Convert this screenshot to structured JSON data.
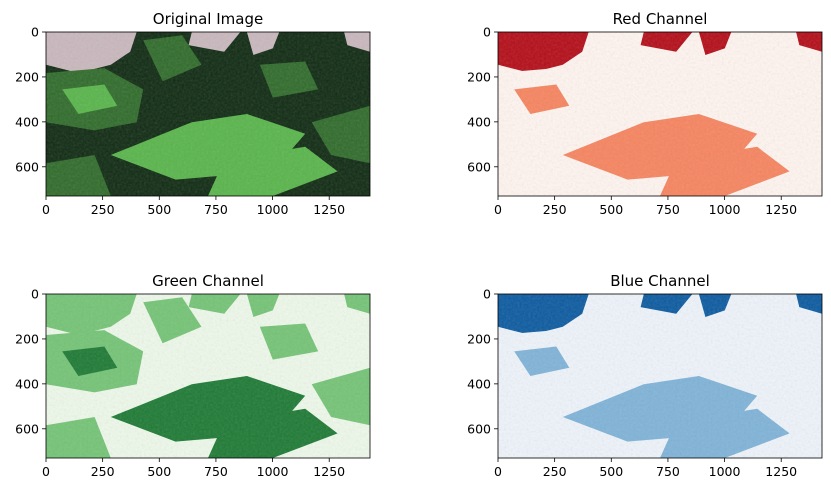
{
  "chart_data": [
    {
      "type": "heatmap",
      "title": "Original Image",
      "colormap": "rgb",
      "xlim": [
        0,
        1430
      ],
      "ylim": [
        730,
        0
      ],
      "xticks": [
        0,
        250,
        500,
        750,
        1000,
        1250
      ],
      "yticks": [
        0,
        200,
        400,
        600
      ],
      "colors": {
        "dark": "#0f2a12",
        "mid": "#2f6b2a",
        "field": "#58b54a",
        "bare": "#c9b8bd"
      }
    },
    {
      "type": "heatmap",
      "title": "Red Channel",
      "colormap": "Reds",
      "xlim": [
        0,
        1430
      ],
      "ylim": [
        730,
        0
      ],
      "xticks": [
        0,
        250,
        500,
        750,
        1000,
        1250
      ],
      "yticks": [
        0,
        200,
        400,
        600
      ],
      "colors": {
        "low": "#fff5f0",
        "mid": "#f7845f",
        "high": "#b40c17"
      }
    },
    {
      "type": "heatmap",
      "title": "Green Channel",
      "colormap": "Greens",
      "xlim": [
        0,
        1430
      ],
      "ylim": [
        730,
        0
      ],
      "xticks": [
        0,
        250,
        500,
        750,
        1000,
        1250
      ],
      "yticks": [
        0,
        200,
        400,
        600
      ],
      "colors": {
        "low": "#eef9ea",
        "mid": "#74c476",
        "high": "#1d7a34"
      }
    },
    {
      "type": "heatmap",
      "title": "Blue Channel",
      "colormap": "Blues",
      "xlim": [
        0,
        1430
      ],
      "ylim": [
        730,
        0
      ],
      "xticks": [
        0,
        250,
        500,
        750,
        1000,
        1250
      ],
      "yticks": [
        0,
        200,
        400,
        600
      ],
      "colors": {
        "low": "#eef4fb",
        "mid": "#7fb3d8",
        "high": "#0b5aa0"
      }
    }
  ]
}
